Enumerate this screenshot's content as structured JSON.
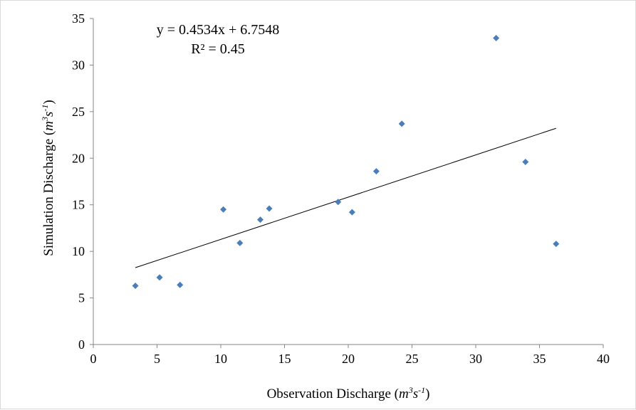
{
  "chart_data": {
    "type": "scatter",
    "title": "",
    "xlabel": {
      "main": "Observation Discharge (",
      "unit": "m",
      "sup1": "3",
      "unit2": "s",
      "sup2": "-1",
      "close": ")"
    },
    "ylabel": {
      "main": "Simulation Discharge (",
      "unit": "m",
      "sup1": "3",
      "unit2": "s",
      "sup2": "-1",
      "close": ")"
    },
    "xlim": [
      0,
      40
    ],
    "ylim": [
      0,
      35
    ],
    "xticks": [
      0,
      5,
      10,
      15,
      20,
      25,
      30,
      35,
      40
    ],
    "yticks": [
      0,
      5,
      10,
      15,
      20,
      25,
      30,
      35
    ],
    "grid": false,
    "points": [
      {
        "x": 3.3,
        "y": 6.3
      },
      {
        "x": 5.2,
        "y": 7.2
      },
      {
        "x": 6.8,
        "y": 6.4
      },
      {
        "x": 10.2,
        "y": 14.5
      },
      {
        "x": 11.5,
        "y": 10.9
      },
      {
        "x": 13.1,
        "y": 13.4
      },
      {
        "x": 13.8,
        "y": 14.6
      },
      {
        "x": 19.2,
        "y": 15.3
      },
      {
        "x": 20.3,
        "y": 14.2
      },
      {
        "x": 22.2,
        "y": 18.6
      },
      {
        "x": 24.2,
        "y": 23.7
      },
      {
        "x": 31.6,
        "y": 32.9
      },
      {
        "x": 33.9,
        "y": 19.6
      },
      {
        "x": 36.3,
        "y": 10.8
      }
    ],
    "trendline": {
      "slope": 0.4534,
      "intercept": 6.7548,
      "x_start": 3.3,
      "x_end": 36.3
    },
    "equation_text": "y = 0.4534x + 6.7548",
    "r2_text": "R² = 0.45",
    "colors": {
      "marker": "#4a7ebb",
      "trendline": "#000000",
      "axis": "#868686"
    }
  }
}
